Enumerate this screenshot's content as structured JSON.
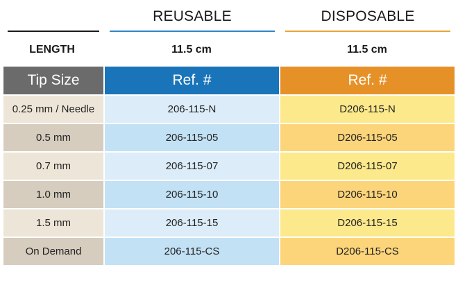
{
  "headers": {
    "reusable": "REUSABLE",
    "disposable": "DISPOSABLE"
  },
  "length_row": {
    "label": "LENGTH",
    "reusable": "11.5 cm",
    "disposable": "11.5 cm"
  },
  "table": {
    "columns": [
      "Tip Size",
      "Ref. #",
      "Ref. #"
    ],
    "rows": [
      {
        "tip": "0.25 mm / Needle",
        "reusable": "206-115-N",
        "disposable": "D206-115-N"
      },
      {
        "tip": "0.5 mm",
        "reusable": "206-115-05",
        "disposable": "D206-115-05"
      },
      {
        "tip": "0.7 mm",
        "reusable": "206-115-07",
        "disposable": "D206-115-07"
      },
      {
        "tip": "1.0 mm",
        "reusable": "206-115-10",
        "disposable": "D206-115-10"
      },
      {
        "tip": "1.5 mm",
        "reusable": "206-115-15",
        "disposable": "D206-115-15"
      },
      {
        "tip": "On Demand",
        "reusable": "206-115-CS",
        "disposable": "D206-115-CS"
      }
    ]
  },
  "colors": {
    "reusable_accent": "#1a74b9",
    "disposable_accent": "#e69128",
    "tip_header": "#6b6b6b"
  }
}
